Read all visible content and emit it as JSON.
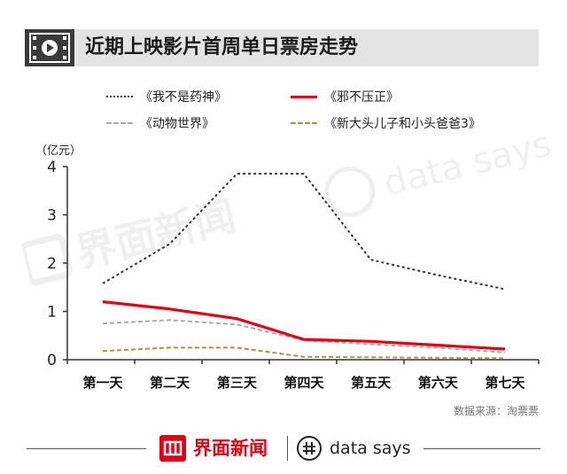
{
  "header": {
    "title": "近期上映影片首周单日票房走势",
    "icon": "film-play-icon"
  },
  "chart_data": {
    "type": "line",
    "ylabel": "（亿元）",
    "ylim": [
      0,
      4
    ],
    "yticks": [
      "0",
      "1",
      "2",
      "3",
      "4"
    ],
    "categories": [
      "第一天",
      "第二天",
      "第三天",
      "第四天",
      "第五天",
      "第六天",
      "第七天"
    ],
    "grid": false,
    "legend_position": "top",
    "series": [
      {
        "name": "《我不是药神》",
        "color": "#333333",
        "style": "dotted",
        "values": [
          1.58,
          2.4,
          3.85,
          3.85,
          2.07,
          1.75,
          1.46
        ]
      },
      {
        "name": "《邪不压正》",
        "color": "#e60012",
        "style": "solid",
        "values": [
          1.2,
          1.05,
          0.85,
          0.42,
          0.38,
          0.3,
          0.22
        ]
      },
      {
        "name": "《动物世界》",
        "color": "#aaaaaa",
        "style": "dashed",
        "values": [
          0.75,
          0.82,
          0.73,
          0.4,
          0.32,
          0.25,
          0.15
        ]
      },
      {
        "name": "《新大头儿子和小头爸爸3》",
        "color": "#9a9a4a",
        "style": "dashed",
        "values": [
          0.18,
          0.25,
          0.25,
          0.06,
          0.05,
          0.04,
          0.03
        ]
      }
    ]
  },
  "source": "数据来源：淘票票",
  "footer": {
    "brand_cn": "界面新闻",
    "brand_en": "data says",
    "logo_icon": "jiemian-logo-icon",
    "datasays_icon": "datasays-logo-icon"
  },
  "watermarks": {
    "cn": "界面新闻",
    "en": "data says"
  }
}
